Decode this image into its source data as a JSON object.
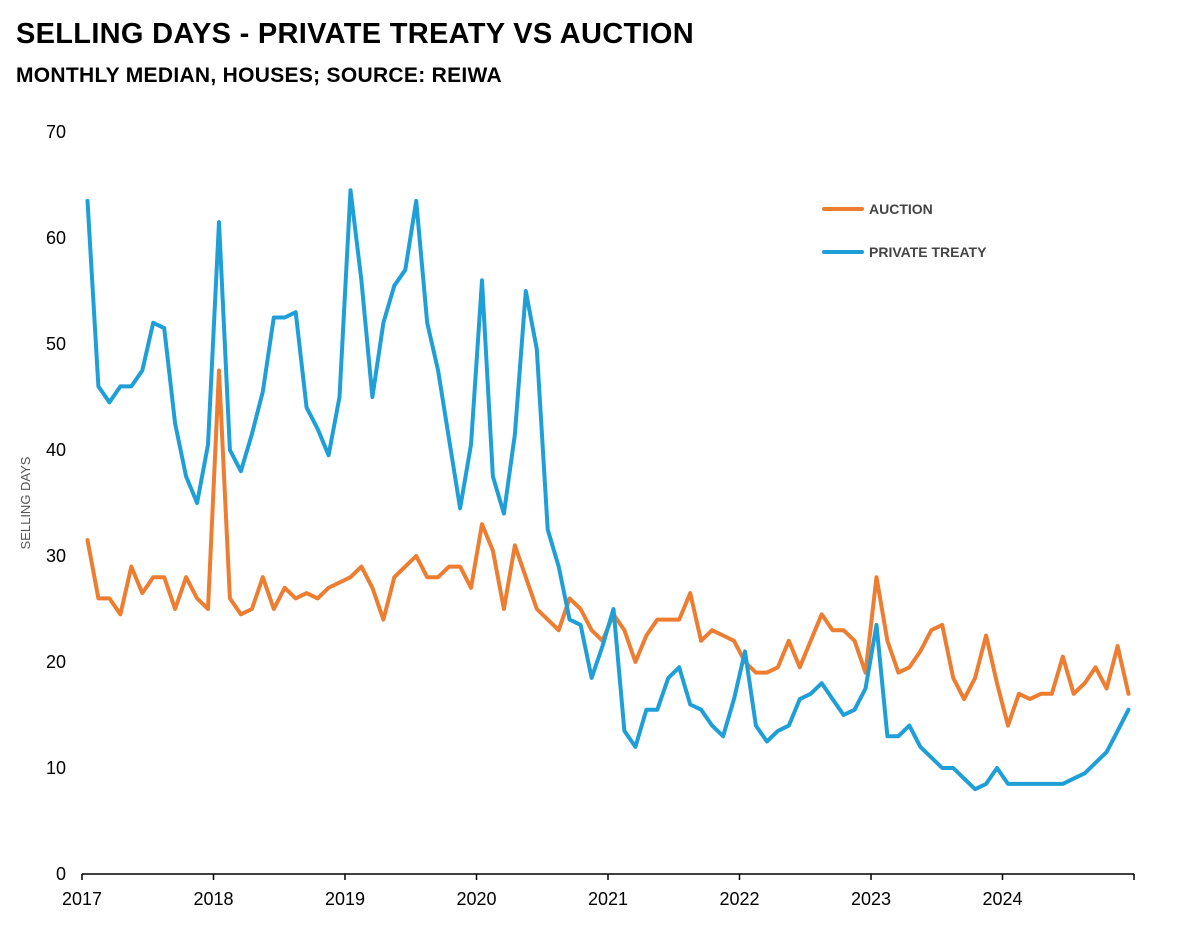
{
  "chart_data": {
    "type": "line",
    "title": "SELLING DAYS - PRIVATE TREATY VS AUCTION",
    "subtitle": "MONTHLY MEDIAN, HOUSES; SOURCE: REIWA",
    "ylabel": "SELLING DAYS",
    "xlabel": "",
    "ylim": [
      0,
      70
    ],
    "yticks": [
      0,
      10,
      20,
      30,
      40,
      50,
      60,
      70
    ],
    "xticks": [
      "2017",
      "2018",
      "2019",
      "2020",
      "2021",
      "2022",
      "2023",
      "2024"
    ],
    "x_start": "2017-01",
    "x_end": "2024-12",
    "legend_position": "top-right",
    "grid": false,
    "series": [
      {
        "name": "AUCTION",
        "color": "#ED7D31",
        "values": [
          31.5,
          26,
          26,
          24.5,
          29,
          26.5,
          28,
          28,
          25,
          28,
          26,
          25,
          47.5,
          26,
          24.5,
          25,
          28,
          25,
          27,
          26,
          26.5,
          26,
          27,
          27.5,
          28,
          29,
          27,
          24,
          28,
          29,
          30,
          28,
          28,
          29,
          29,
          27,
          33,
          30.5,
          25,
          31,
          28,
          25,
          24,
          23,
          26,
          25,
          23,
          22,
          24.5,
          23,
          20,
          22.5,
          24,
          24,
          24,
          26.5,
          22,
          23,
          22.5,
          22,
          20,
          19,
          19,
          19.5,
          22,
          19.5,
          22,
          24.5,
          23,
          23,
          22,
          19,
          28,
          22,
          19,
          19.5,
          21,
          23,
          23.5,
          18.5,
          16.5,
          18.5,
          22.5,
          18,
          14,
          17,
          16.5,
          17,
          17,
          20.5,
          17,
          18,
          19.5,
          17.5,
          21.5,
          17
        ]
      },
      {
        "name": "PRIVATE TREATY",
        "color": "#1F9FD8",
        "values": [
          63.5,
          46,
          44.5,
          46,
          46,
          47.5,
          52,
          51.5,
          42.5,
          37.5,
          35,
          40.5,
          61.5,
          40,
          38,
          41.5,
          45.5,
          52.5,
          52.5,
          53,
          44,
          42,
          39.5,
          45,
          64.5,
          56,
          45,
          52,
          55.5,
          57,
          63.5,
          52,
          47.5,
          41,
          34.5,
          40.5,
          56,
          37.5,
          34,
          41.5,
          55,
          49.5,
          32.5,
          29,
          24,
          23.5,
          18.5,
          21.5,
          25,
          13.5,
          12,
          15.5,
          15.5,
          18.5,
          19.5,
          16,
          15.5,
          14,
          13,
          16.5,
          21,
          14,
          12.5,
          13.5,
          14,
          16.5,
          17,
          18,
          16.5,
          15,
          15.5,
          17.5,
          23.5,
          13,
          13,
          14,
          12,
          11,
          10,
          10,
          9,
          8,
          8.5,
          10,
          8.5,
          8.5,
          8.5,
          8.5,
          8.5,
          8.5,
          9,
          9.5,
          10.5,
          11.5,
          13.5,
          15.5
        ]
      }
    ]
  }
}
